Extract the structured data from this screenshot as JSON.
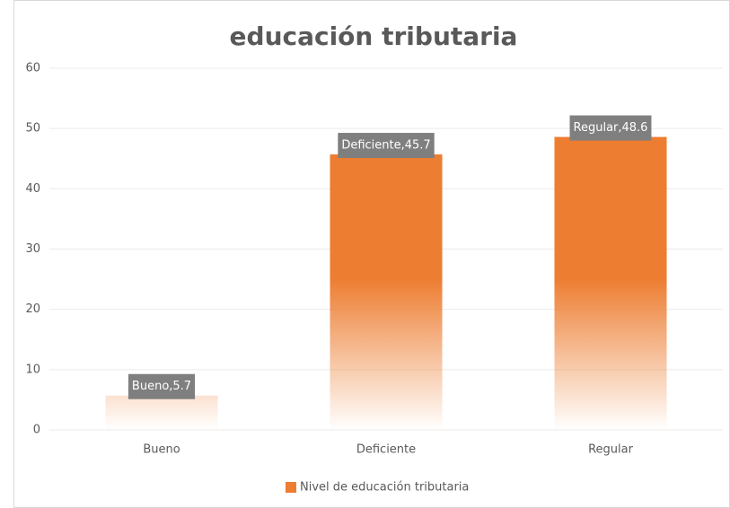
{
  "chart_data": {
    "type": "bar",
    "title": "educación tributaria",
    "categories": [
      "Bueno",
      "Deficiente",
      "Regular"
    ],
    "series": [
      {
        "name": "Nivel de educación tributaria",
        "color": "#ed7d31",
        "values": [
          5.7,
          45.7,
          48.6
        ],
        "value_labels": [
          "Bueno,5.7",
          "Deficiente,45.7",
          "Regular,48.6"
        ]
      }
    ],
    "ylim": [
      0,
      60
    ],
    "yticks": [
      0,
      10,
      20,
      30,
      40,
      50,
      60
    ],
    "grid": true,
    "legend": "bottom"
  }
}
